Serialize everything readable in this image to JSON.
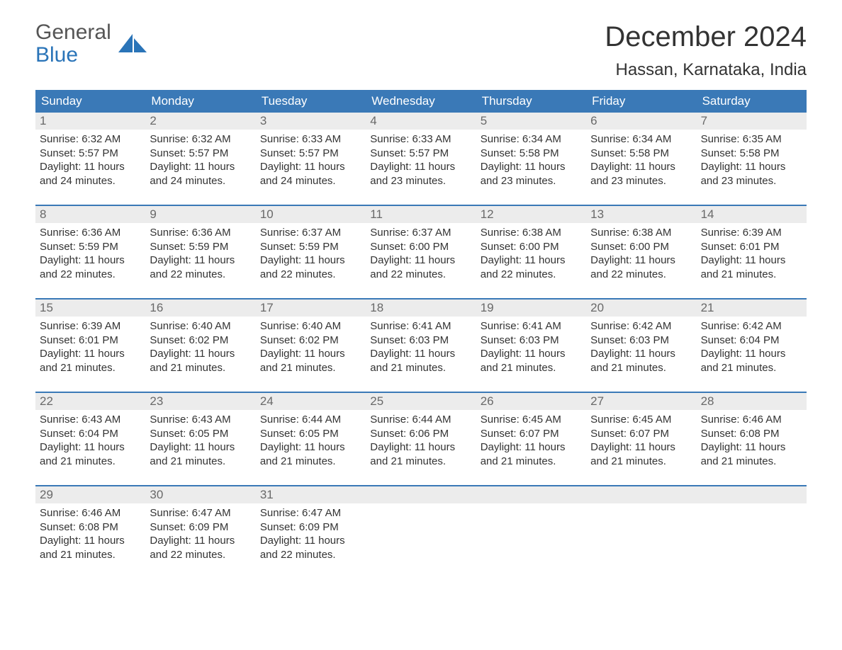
{
  "logo": {
    "line1": "General",
    "line2": "Blue",
    "shape_color": "#2a74b8"
  },
  "title": "December 2024",
  "location": "Hassan, Karnataka, India",
  "colors": {
    "header_bg": "#3a79b7",
    "header_text": "#ffffff",
    "date_bg": "#ececec",
    "date_text": "#696969",
    "body_text": "#333333",
    "week_border": "#3a79b7",
    "page_bg": "#ffffff"
  },
  "day_names": [
    "Sunday",
    "Monday",
    "Tuesday",
    "Wednesday",
    "Thursday",
    "Friday",
    "Saturday"
  ],
  "weeks": [
    [
      {
        "d": "1",
        "sr": "Sunrise: 6:32 AM",
        "ss": "Sunset: 5:57 PM",
        "dl1": "Daylight: 11 hours",
        "dl2": "and 24 minutes."
      },
      {
        "d": "2",
        "sr": "Sunrise: 6:32 AM",
        "ss": "Sunset: 5:57 PM",
        "dl1": "Daylight: 11 hours",
        "dl2": "and 24 minutes."
      },
      {
        "d": "3",
        "sr": "Sunrise: 6:33 AM",
        "ss": "Sunset: 5:57 PM",
        "dl1": "Daylight: 11 hours",
        "dl2": "and 24 minutes."
      },
      {
        "d": "4",
        "sr": "Sunrise: 6:33 AM",
        "ss": "Sunset: 5:57 PM",
        "dl1": "Daylight: 11 hours",
        "dl2": "and 23 minutes."
      },
      {
        "d": "5",
        "sr": "Sunrise: 6:34 AM",
        "ss": "Sunset: 5:58 PM",
        "dl1": "Daylight: 11 hours",
        "dl2": "and 23 minutes."
      },
      {
        "d": "6",
        "sr": "Sunrise: 6:34 AM",
        "ss": "Sunset: 5:58 PM",
        "dl1": "Daylight: 11 hours",
        "dl2": "and 23 minutes."
      },
      {
        "d": "7",
        "sr": "Sunrise: 6:35 AM",
        "ss": "Sunset: 5:58 PM",
        "dl1": "Daylight: 11 hours",
        "dl2": "and 23 minutes."
      }
    ],
    [
      {
        "d": "8",
        "sr": "Sunrise: 6:36 AM",
        "ss": "Sunset: 5:59 PM",
        "dl1": "Daylight: 11 hours",
        "dl2": "and 22 minutes."
      },
      {
        "d": "9",
        "sr": "Sunrise: 6:36 AM",
        "ss": "Sunset: 5:59 PM",
        "dl1": "Daylight: 11 hours",
        "dl2": "and 22 minutes."
      },
      {
        "d": "10",
        "sr": "Sunrise: 6:37 AM",
        "ss": "Sunset: 5:59 PM",
        "dl1": "Daylight: 11 hours",
        "dl2": "and 22 minutes."
      },
      {
        "d": "11",
        "sr": "Sunrise: 6:37 AM",
        "ss": "Sunset: 6:00 PM",
        "dl1": "Daylight: 11 hours",
        "dl2": "and 22 minutes."
      },
      {
        "d": "12",
        "sr": "Sunrise: 6:38 AM",
        "ss": "Sunset: 6:00 PM",
        "dl1": "Daylight: 11 hours",
        "dl2": "and 22 minutes."
      },
      {
        "d": "13",
        "sr": "Sunrise: 6:38 AM",
        "ss": "Sunset: 6:00 PM",
        "dl1": "Daylight: 11 hours",
        "dl2": "and 22 minutes."
      },
      {
        "d": "14",
        "sr": "Sunrise: 6:39 AM",
        "ss": "Sunset: 6:01 PM",
        "dl1": "Daylight: 11 hours",
        "dl2": "and 21 minutes."
      }
    ],
    [
      {
        "d": "15",
        "sr": "Sunrise: 6:39 AM",
        "ss": "Sunset: 6:01 PM",
        "dl1": "Daylight: 11 hours",
        "dl2": "and 21 minutes."
      },
      {
        "d": "16",
        "sr": "Sunrise: 6:40 AM",
        "ss": "Sunset: 6:02 PM",
        "dl1": "Daylight: 11 hours",
        "dl2": "and 21 minutes."
      },
      {
        "d": "17",
        "sr": "Sunrise: 6:40 AM",
        "ss": "Sunset: 6:02 PM",
        "dl1": "Daylight: 11 hours",
        "dl2": "and 21 minutes."
      },
      {
        "d": "18",
        "sr": "Sunrise: 6:41 AM",
        "ss": "Sunset: 6:03 PM",
        "dl1": "Daylight: 11 hours",
        "dl2": "and 21 minutes."
      },
      {
        "d": "19",
        "sr": "Sunrise: 6:41 AM",
        "ss": "Sunset: 6:03 PM",
        "dl1": "Daylight: 11 hours",
        "dl2": "and 21 minutes."
      },
      {
        "d": "20",
        "sr": "Sunrise: 6:42 AM",
        "ss": "Sunset: 6:03 PM",
        "dl1": "Daylight: 11 hours",
        "dl2": "and 21 minutes."
      },
      {
        "d": "21",
        "sr": "Sunrise: 6:42 AM",
        "ss": "Sunset: 6:04 PM",
        "dl1": "Daylight: 11 hours",
        "dl2": "and 21 minutes."
      }
    ],
    [
      {
        "d": "22",
        "sr": "Sunrise: 6:43 AM",
        "ss": "Sunset: 6:04 PM",
        "dl1": "Daylight: 11 hours",
        "dl2": "and 21 minutes."
      },
      {
        "d": "23",
        "sr": "Sunrise: 6:43 AM",
        "ss": "Sunset: 6:05 PM",
        "dl1": "Daylight: 11 hours",
        "dl2": "and 21 minutes."
      },
      {
        "d": "24",
        "sr": "Sunrise: 6:44 AM",
        "ss": "Sunset: 6:05 PM",
        "dl1": "Daylight: 11 hours",
        "dl2": "and 21 minutes."
      },
      {
        "d": "25",
        "sr": "Sunrise: 6:44 AM",
        "ss": "Sunset: 6:06 PM",
        "dl1": "Daylight: 11 hours",
        "dl2": "and 21 minutes."
      },
      {
        "d": "26",
        "sr": "Sunrise: 6:45 AM",
        "ss": "Sunset: 6:07 PM",
        "dl1": "Daylight: 11 hours",
        "dl2": "and 21 minutes."
      },
      {
        "d": "27",
        "sr": "Sunrise: 6:45 AM",
        "ss": "Sunset: 6:07 PM",
        "dl1": "Daylight: 11 hours",
        "dl2": "and 21 minutes."
      },
      {
        "d": "28",
        "sr": "Sunrise: 6:46 AM",
        "ss": "Sunset: 6:08 PM",
        "dl1": "Daylight: 11 hours",
        "dl2": "and 21 minutes."
      }
    ],
    [
      {
        "d": "29",
        "sr": "Sunrise: 6:46 AM",
        "ss": "Sunset: 6:08 PM",
        "dl1": "Daylight: 11 hours",
        "dl2": "and 21 minutes."
      },
      {
        "d": "30",
        "sr": "Sunrise: 6:47 AM",
        "ss": "Sunset: 6:09 PM",
        "dl1": "Daylight: 11 hours",
        "dl2": "and 22 minutes."
      },
      {
        "d": "31",
        "sr": "Sunrise: 6:47 AM",
        "ss": "Sunset: 6:09 PM",
        "dl1": "Daylight: 11 hours",
        "dl2": "and 22 minutes."
      },
      {
        "empty": true
      },
      {
        "empty": true
      },
      {
        "empty": true
      },
      {
        "empty": true
      }
    ]
  ]
}
